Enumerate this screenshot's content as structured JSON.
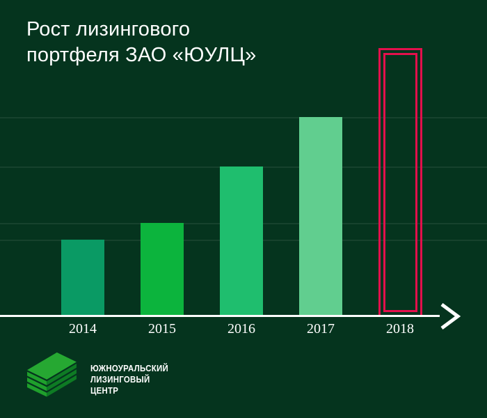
{
  "title": {
    "line1": "Рост лизингового",
    "line2": "портфеля ЗАО «ЮУЛЦ»"
  },
  "chart_data": {
    "type": "bar",
    "title": "Рост лизингового портфеля ЗАО «ЮУЛЦ»",
    "categories": [
      "2014",
      "2015",
      "2016",
      "2017",
      "2018"
    ],
    "values": [
      108,
      132,
      213,
      284,
      386
    ],
    "values_note": "no numeric axis shown; values are relative bar heights (px), 2018 = 100%",
    "values_relative_pct": [
      28,
      34,
      55,
      74,
      100
    ],
    "bar_colors": [
      "#0A9A64",
      "#0CB43D",
      "#1FBE6E",
      "#61CE8F",
      "none"
    ],
    "highlight": {
      "category": "2018",
      "style": "red double outline, empty bar",
      "color": "#E3104C"
    },
    "xlabel": "",
    "ylabel": "",
    "grid": "subtle horizontal line at the top level of each filled bar",
    "axis": {
      "x_baseline": true,
      "arrow": "right",
      "color": "#FFFFFF"
    },
    "legend": "none"
  },
  "colors": {
    "background": "#05341E",
    "text": "#FFFFFF",
    "highlight_red": "#E3104C",
    "gridline": "rgba(255,255,255,0.07)",
    "logo_top": "#26A832",
    "logo_front": "#1FA02C",
    "logo_side": "#0E7B24"
  },
  "footer": {
    "logo_line1": "ЮЖНОУРАЛЬСКИЙ",
    "logo_line2": "ЛИЗИНГОВЫЙ",
    "logo_line3": "ЦЕНТР"
  }
}
